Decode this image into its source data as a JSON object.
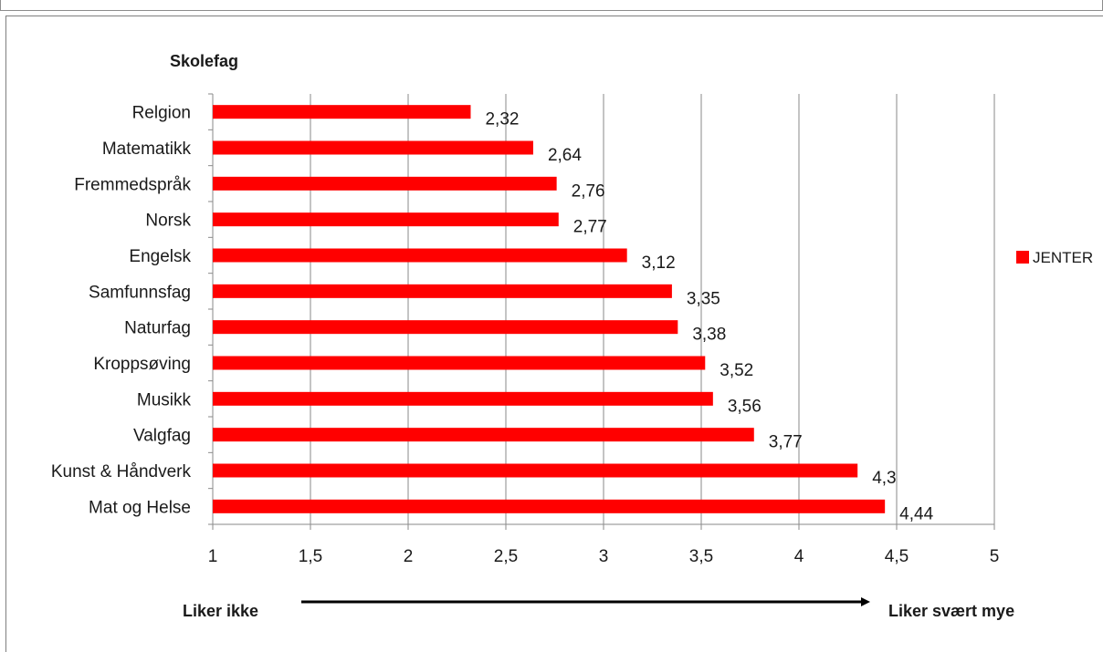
{
  "chart_data": {
    "type": "bar",
    "orientation": "horizontal",
    "title": "",
    "ylabel": "Skolefag",
    "xlim": [
      1,
      5
    ],
    "xticks": [
      "1",
      "1,5",
      "2",
      "2,5",
      "3",
      "3,5",
      "4",
      "4,5",
      "5"
    ],
    "grid": true,
    "legend_position": "right",
    "categories": [
      "Relgion",
      "Matematikk",
      "Fremmedspråk",
      "Norsk",
      "Engelsk",
      "Samfunnsfag",
      "Naturfag",
      "Kroppsøving",
      "Musikk",
      "Valgfag",
      "Kunst & Håndverk",
      "Mat og Helse"
    ],
    "series": [
      {
        "name": "JENTER",
        "color": "#ff0000",
        "values": [
          2.32,
          2.64,
          2.76,
          2.77,
          3.12,
          3.35,
          3.38,
          3.52,
          3.56,
          3.77,
          4.3,
          4.44
        ],
        "labels": [
          "2,32",
          "2,64",
          "2,76",
          "2,77",
          "3,12",
          "3,35",
          "3,38",
          "3,52",
          "3,56",
          "3,77",
          "4,3",
          "4,44"
        ]
      }
    ],
    "scale_annotation": {
      "left": "Liker ikke",
      "right": "Liker svært mye"
    }
  }
}
